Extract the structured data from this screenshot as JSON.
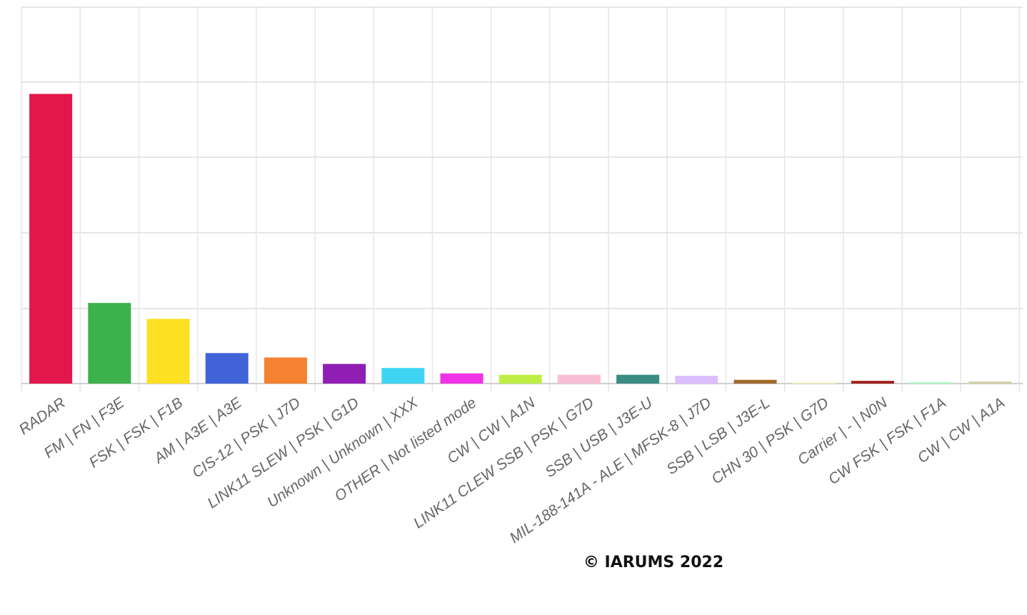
{
  "chart_data": {
    "type": "bar",
    "categories": [
      "RADAR",
      "FM | FN | F3E",
      "FSK | FSK | F1B",
      "AM | A3E | A3E",
      "CIS-12 | PSK | J7D",
      "LINK11 SLEW | PSK | G1D",
      "Unknown | Unknown | XXX",
      "OTHER | Not listed mode",
      "CW | CW | A1N",
      "LINK11 CLEW SSB | PSK | G7D",
      "SSB | USB | J3E-U",
      "MIL-188-141A - ALE | MFSK-8 | J7D",
      "SSB | LSB | J3E-L",
      "CHN 30 | PSK | G7D",
      "Carrier | - | N0N",
      "CW FSK | FSK | F1A",
      "CW | CW | A1A"
    ],
    "values": [
      85.5,
      23.8,
      19.1,
      9.0,
      7.7,
      5.8,
      4.6,
      3.0,
      2.6,
      2.6,
      2.6,
      2.3,
      1.1,
      0.4,
      0.8,
      0.3,
      0.6
    ],
    "colors": [
      "#e3174b",
      "#3cb14c",
      "#fde022",
      "#4163d8",
      "#f58231",
      "#911eb4",
      "#3fd4f4",
      "#ef32e6",
      "#bfef45",
      "#fabed4",
      "#3a8c85",
      "#dcbeff",
      "#a0692d",
      "#fffac8",
      "#a01d1d",
      "#aaffc3",
      "#d4d0a6"
    ],
    "ylim": [
      0,
      100
    ],
    "grid": true,
    "legend": "none",
    "annotation": "© IARUMS 2022"
  }
}
